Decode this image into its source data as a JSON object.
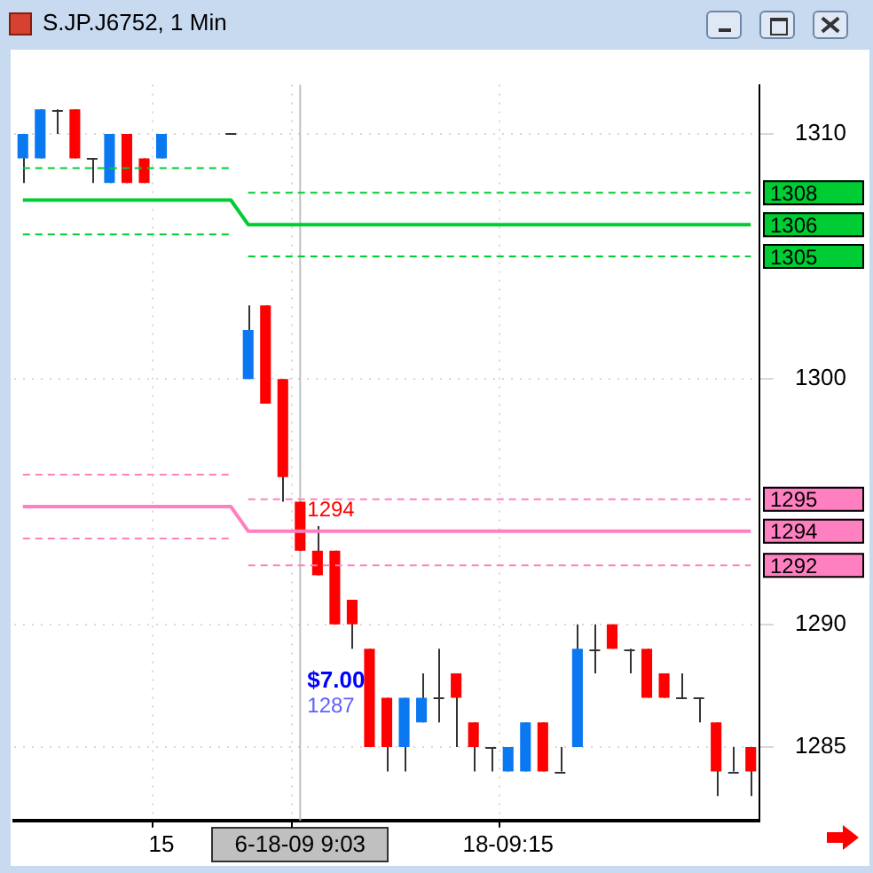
{
  "chart_data": {
    "type": "candlestick",
    "title": "S.JP.J6752, 1 Min",
    "categories": [
      null,
      null,
      null,
      null,
      null,
      null,
      null,
      null,
      "15",
      null,
      null,
      null,
      null,
      null,
      null,
      null,
      "6-18-09 9:03",
      null,
      null,
      null,
      null,
      null,
      null,
      null,
      null,
      null,
      null,
      null,
      "18-09:15",
      null,
      null,
      null,
      null,
      null,
      null,
      null,
      null,
      null,
      null,
      null,
      null,
      null,
      null
    ],
    "ohlc": [
      [
        1309,
        1310,
        1308,
        1310
      ],
      [
        1309,
        1311,
        1309,
        1311
      ],
      [
        1311,
        1311,
        1310,
        1311
      ],
      [
        1311,
        1311,
        1309,
        1309
      ],
      [
        1309,
        1309,
        1308,
        1309
      ],
      [
        1308,
        1310,
        1308,
        1310
      ],
      [
        1310,
        1310,
        1308,
        1308
      ],
      [
        1309,
        1309,
        1308,
        1308
      ],
      [
        1309,
        1310,
        1309,
        1310
      ],
      null,
      null,
      null,
      [
        1310,
        1310,
        1310,
        1310
      ],
      [
        1300,
        1303,
        1300,
        1302
      ],
      [
        1303,
        1303,
        1299,
        1299
      ],
      [
        1300,
        1300,
        1295,
        1296
      ],
      [
        1295,
        1295,
        1293,
        1293
      ],
      [
        1293,
        1294,
        1292,
        1292
      ],
      [
        1293,
        1293,
        1290,
        1290
      ],
      [
        1291,
        1291,
        1289,
        1290
      ],
      [
        1289,
        1289,
        1285,
        1285
      ],
      [
        1287,
        1287,
        1284,
        1285
      ],
      [
        1285,
        1287,
        1284,
        1287
      ],
      [
        1286,
        1288,
        1286,
        1287
      ],
      [
        1287,
        1289,
        1286,
        1287
      ],
      [
        1288,
        1288,
        1285,
        1287
      ],
      [
        1286,
        1286,
        1284,
        1285
      ],
      [
        1285,
        1285,
        1284,
        1285
      ],
      [
        1284,
        1285,
        1284,
        1285
      ],
      [
        1284,
        1286,
        1284,
        1286
      ],
      [
        1286,
        1286,
        1284,
        1284
      ],
      [
        1284,
        1285,
        1284,
        1284
      ],
      [
        1285,
        1290,
        1285,
        1289
      ],
      [
        1289,
        1290,
        1288,
        1289
      ],
      [
        1290,
        1290,
        1289,
        1289
      ],
      [
        1289,
        1289,
        1288,
        1289
      ],
      [
        1289,
        1289,
        1287,
        1287
      ],
      [
        1288,
        1288,
        1287,
        1287
      ],
      [
        1287,
        1288,
        1287,
        1287
      ],
      [
        1287,
        1287,
        1286,
        1287
      ],
      [
        1286,
        1286,
        1283,
        1284
      ],
      [
        1284,
        1285,
        1284,
        1284
      ],
      [
        1285,
        1285,
        1283,
        1284
      ]
    ],
    "colors": [
      "#0a78f0",
      "#0a78f0",
      "#333333",
      "#ff0000",
      "#333333",
      "#0a78f0",
      "#ff0000",
      "#ff0000",
      "#0a78f0",
      null,
      null,
      null,
      "#333333",
      "#0a78f0",
      "#ff0000",
      "#ff0000",
      "#ff0000",
      "#ff0000",
      "#ff0000",
      "#ff0000",
      "#ff0000",
      "#ff0000",
      "#0a78f0",
      "#0a78f0",
      "#333333",
      "#ff0000",
      "#ff0000",
      "#333333",
      "#0a78f0",
      "#0a78f0",
      "#ff0000",
      "#333333",
      "#0a78f0",
      "#333333",
      "#ff0000",
      "#333333",
      "#ff0000",
      "#ff0000",
      "#333333",
      "#333333",
      "#ff0000",
      "#333333",
      "#ff0000"
    ],
    "series": [
      {
        "type": "line",
        "color": "#00cc33",
        "line_style": "dashed",
        "values": [
          1308.6,
          1308.6,
          1308.6,
          1308.6,
          1308.6,
          1308.6,
          1308.6,
          1308.6,
          1308.6,
          1308.6,
          1308.6,
          1308.6,
          1308.6,
          null,
          null,
          null,
          null,
          null,
          null,
          null,
          null,
          null,
          null,
          null,
          null,
          null,
          null,
          null,
          null,
          null,
          null,
          null,
          null,
          null,
          null,
          null,
          null,
          null,
          null,
          null,
          null,
          null,
          null
        ]
      },
      {
        "type": "line",
        "color": "#00cc33",
        "line_style": "dashed",
        "values": [
          null,
          null,
          null,
          null,
          null,
          null,
          null,
          null,
          null,
          null,
          null,
          null,
          null,
          1307.6,
          1307.6,
          1307.6,
          1307.6,
          1307.6,
          1307.6,
          1307.6,
          1307.6,
          1307.6,
          1307.6,
          1307.6,
          1307.6,
          1307.6,
          1307.6,
          1307.6,
          1307.6,
          1307.6,
          1307.6,
          1307.6,
          1307.6,
          1307.6,
          1307.6,
          1307.6,
          1307.6,
          1307.6,
          1307.6,
          1307.6,
          1307.6,
          1307.6,
          1307.6
        ],
        "value_labels": [
          null,
          null,
          null,
          null,
          null,
          null,
          null,
          null,
          null,
          null,
          null,
          null,
          null,
          null,
          null,
          null,
          null,
          null,
          null,
          null,
          null,
          null,
          null,
          null,
          null,
          null,
          null,
          null,
          null,
          null,
          null,
          null,
          null,
          null,
          null,
          null,
          null,
          null,
          null,
          null,
          null,
          null,
          "1308"
        ]
      },
      {
        "type": "line",
        "color": "#00cc33",
        "line_style": "solid",
        "values": [
          1307.3,
          1307.3,
          1307.3,
          1307.3,
          1307.3,
          1307.3,
          1307.3,
          1307.3,
          1307.3,
          1307.3,
          1307.3,
          1307.3,
          1307.3,
          1306.3,
          1306.3,
          1306.3,
          1306.3,
          1306.3,
          1306.3,
          1306.3,
          1306.3,
          1306.3,
          1306.3,
          1306.3,
          1306.3,
          1306.3,
          1306.3,
          1306.3,
          1306.3,
          1306.3,
          1306.3,
          1306.3,
          1306.3,
          1306.3,
          1306.3,
          1306.3,
          1306.3,
          1306.3,
          1306.3,
          1306.3,
          1306.3,
          1306.3,
          1306.3
        ],
        "value_labels": [
          null,
          null,
          null,
          null,
          null,
          null,
          null,
          null,
          null,
          null,
          null,
          null,
          null,
          null,
          null,
          null,
          null,
          null,
          null,
          null,
          null,
          null,
          null,
          null,
          null,
          null,
          null,
          null,
          null,
          null,
          null,
          null,
          null,
          null,
          null,
          null,
          null,
          null,
          null,
          null,
          null,
          null,
          "1306"
        ]
      },
      {
        "type": "line",
        "color": "#00cc33",
        "line_style": "dashed",
        "values": [
          1305.9,
          1305.9,
          1305.9,
          1305.9,
          1305.9,
          1305.9,
          1305.9,
          1305.9,
          1305.9,
          1305.9,
          1305.9,
          1305.9,
          1305.9,
          null,
          null,
          null,
          null,
          null,
          null,
          null,
          null,
          null,
          null,
          null,
          null,
          null,
          null,
          null,
          null,
          null,
          null,
          null,
          null,
          null,
          null,
          null,
          null,
          null,
          null,
          null,
          null,
          null,
          null
        ]
      },
      {
        "type": "line",
        "color": "#00cc33",
        "line_style": "dashed",
        "values": [
          null,
          null,
          null,
          null,
          null,
          null,
          null,
          null,
          null,
          null,
          null,
          null,
          null,
          1305.0,
          1305.0,
          1305.0,
          1305.0,
          1305.0,
          1305.0,
          1305.0,
          1305.0,
          1305.0,
          1305.0,
          1305.0,
          1305.0,
          1305.0,
          1305.0,
          1305.0,
          1305.0,
          1305.0,
          1305.0,
          1305.0,
          1305.0,
          1305.0,
          1305.0,
          1305.0,
          1305.0,
          1305.0,
          1305.0,
          1305.0,
          1305.0,
          1305.0,
          1305.0
        ],
        "value_labels": [
          null,
          null,
          null,
          null,
          null,
          null,
          null,
          null,
          null,
          null,
          null,
          null,
          null,
          null,
          null,
          null,
          null,
          null,
          null,
          null,
          null,
          null,
          null,
          null,
          null,
          null,
          null,
          null,
          null,
          null,
          null,
          null,
          null,
          null,
          null,
          null,
          null,
          null,
          null,
          null,
          null,
          null,
          "1305"
        ]
      },
      {
        "type": "line",
        "color": "#ff80c0",
        "line_style": "dashed",
        "values": [
          1296.1,
          1296.1,
          1296.1,
          1296.1,
          1296.1,
          1296.1,
          1296.1,
          1296.1,
          1296.1,
          1296.1,
          1296.1,
          1296.1,
          1296.1,
          null,
          null,
          null,
          null,
          null,
          null,
          null,
          null,
          null,
          null,
          null,
          null,
          null,
          null,
          null,
          null,
          null,
          null,
          null,
          null,
          null,
          null,
          null,
          null,
          null,
          null,
          null,
          null,
          null,
          null
        ]
      },
      {
        "type": "line",
        "color": "#ff80c0",
        "line_style": "dashed",
        "values": [
          null,
          null,
          null,
          null,
          null,
          null,
          null,
          null,
          null,
          null,
          null,
          null,
          null,
          1295.1,
          1295.1,
          1295.1,
          1295.1,
          1295.1,
          1295.1,
          1295.1,
          1295.1,
          1295.1,
          1295.1,
          1295.1,
          1295.1,
          1295.1,
          1295.1,
          1295.1,
          1295.1,
          1295.1,
          1295.1,
          1295.1,
          1295.1,
          1295.1,
          1295.1,
          1295.1,
          1295.1,
          1295.1,
          1295.1,
          1295.1,
          1295.1,
          1295.1,
          1295.1
        ],
        "value_labels": [
          null,
          null,
          null,
          null,
          null,
          null,
          null,
          null,
          null,
          null,
          null,
          null,
          null,
          null,
          null,
          null,
          null,
          null,
          null,
          null,
          null,
          null,
          null,
          null,
          null,
          null,
          null,
          null,
          null,
          null,
          null,
          null,
          null,
          null,
          null,
          null,
          null,
          null,
          null,
          null,
          null,
          null,
          "1295"
        ]
      },
      {
        "type": "line",
        "color": "#ff80c0",
        "line_style": "solid",
        "values": [
          1294.8,
          1294.8,
          1294.8,
          1294.8,
          1294.8,
          1294.8,
          1294.8,
          1294.8,
          1294.8,
          1294.8,
          1294.8,
          1294.8,
          1294.8,
          1293.8,
          1293.8,
          1293.8,
          1293.8,
          1293.8,
          1293.8,
          1293.8,
          1293.8,
          1293.8,
          1293.8,
          1293.8,
          1293.8,
          1293.8,
          1293.8,
          1293.8,
          1293.8,
          1293.8,
          1293.8,
          1293.8,
          1293.8,
          1293.8,
          1293.8,
          1293.8,
          1293.8,
          1293.8,
          1293.8,
          1293.8,
          1293.8,
          1293.8,
          1293.8
        ],
        "value_labels": [
          null,
          null,
          null,
          null,
          null,
          null,
          null,
          null,
          null,
          null,
          null,
          null,
          null,
          null,
          null,
          null,
          null,
          null,
          null,
          null,
          null,
          null,
          null,
          null,
          null,
          null,
          null,
          null,
          null,
          null,
          null,
          null,
          null,
          null,
          null,
          null,
          null,
          null,
          null,
          null,
          null,
          null,
          "1294"
        ]
      },
      {
        "type": "line",
        "color": "#ff80c0",
        "line_style": "dashed",
        "values": [
          1293.5,
          1293.5,
          1293.5,
          1293.5,
          1293.5,
          1293.5,
          1293.5,
          1293.5,
          1293.5,
          1293.5,
          1293.5,
          1293.5,
          1293.5,
          null,
          null,
          null,
          null,
          null,
          null,
          null,
          null,
          null,
          null,
          null,
          null,
          null,
          null,
          null,
          null,
          null,
          null,
          null,
          null,
          null,
          null,
          null,
          null,
          null,
          null,
          null,
          null,
          null,
          null
        ]
      },
      {
        "type": "line",
        "color": "#ff80c0",
        "line_style": "dashed",
        "values": [
          null,
          null,
          null,
          null,
          null,
          null,
          null,
          null,
          null,
          null,
          null,
          null,
          null,
          1292.4,
          1292.4,
          1292.4,
          1292.4,
          1292.4,
          1292.4,
          1292.4,
          1292.4,
          1292.4,
          1292.4,
          1292.4,
          1292.4,
          1292.4,
          1292.4,
          1292.4,
          1292.4,
          1292.4,
          1292.4,
          1292.4,
          1292.4,
          1292.4,
          1292.4,
          1292.4,
          1292.4,
          1292.4,
          1292.4,
          1292.4,
          1292.4,
          1292.4,
          1292.4
        ],
        "value_labels": [
          null,
          null,
          null,
          null,
          null,
          null,
          null,
          null,
          null,
          null,
          null,
          null,
          null,
          null,
          null,
          null,
          null,
          null,
          null,
          null,
          null,
          null,
          null,
          null,
          null,
          null,
          null,
          null,
          null,
          null,
          null,
          null,
          null,
          null,
          null,
          null,
          null,
          null,
          null,
          null,
          null,
          null,
          "1292"
        ]
      }
    ],
    "ylim": [
      1282,
      1312
    ],
    "yticks": [
      1285,
      1290,
      1300,
      1310
    ],
    "ref_lines": [
      {
        "axis": "x",
        "value": "6-18-09 9:03",
        "color": "#c0c0c0"
      }
    ],
    "annotations": [
      {
        "text": "1294",
        "x": "6-18-09 9:03",
        "y": 1294
      },
      {
        "text": "$7.00",
        "x": "6-18-09 9:03",
        "y": 1287
      },
      {
        "text": "1287",
        "x": "6-18-09 9:03",
        "y": 1287
      }
    ],
    "grid": true,
    "legend": false
  }
}
